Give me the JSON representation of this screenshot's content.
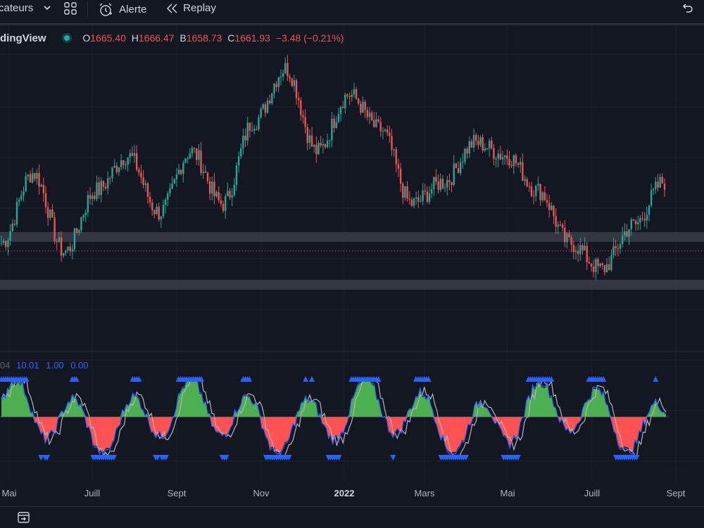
{
  "toolbar": {
    "indicators_label": "cateurs",
    "alert_label": "Alerte",
    "replay_label": "Replay"
  },
  "legend": {
    "symbol": "dingView",
    "open_key": "O",
    "open_val": "1665.40",
    "high_key": "H",
    "high_val": "1666.47",
    "low_key": "B",
    "low_val": "1658.73",
    "close_key": "C",
    "close_val": "1661.93",
    "change": "−3.48 (−0.21%)"
  },
  "indicator": {
    "cut_value": "04",
    "values": [
      "10.01",
      "1.00",
      "0.00"
    ]
  },
  "x_axis": {
    "labels": [
      "Mai",
      "Juill",
      "Sept",
      "Nov",
      "2022",
      "Mars",
      "Mai",
      "Juill",
      "Sept"
    ]
  },
  "colors": {
    "up": "#26a69a",
    "down": "#ef5350",
    "zone": "#3a3d48",
    "blue": "#2962ff",
    "green_fill": "#4caf50",
    "red_fill": "#ff5252",
    "purple": "#9c27b0"
  },
  "chart_data": {
    "type": "candlestick",
    "title": "",
    "price_key_points": [
      1700,
      1780,
      1690,
      1760,
      1800,
      1735,
      1805,
      1745,
      1840,
      1900,
      1805,
      1870,
      1830,
      1745,
      1770,
      1815,
      1800,
      1760,
      1700,
      1670,
      1720,
      1770
    ]
  }
}
